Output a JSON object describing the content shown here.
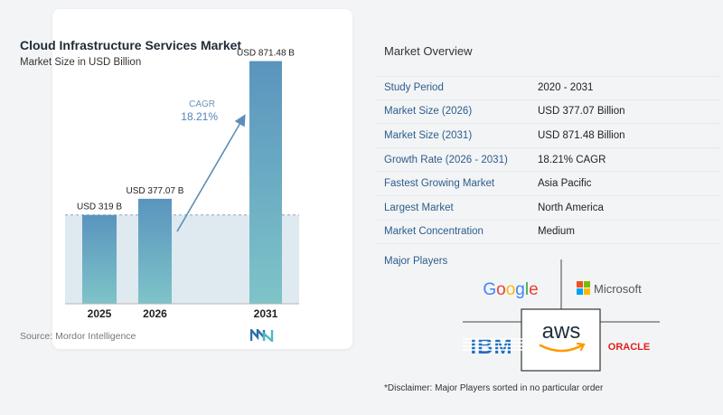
{
  "chart_data": {
    "type": "bar",
    "title": "Cloud Infrastructure Services Market",
    "subtitle": "Market Size in USD Billion",
    "categories": [
      "2025",
      "2026",
      "2031"
    ],
    "values": [
      319,
      377.07,
      871.48
    ],
    "data_labels": [
      "USD 319 B",
      "USD 377.07 B",
      "USD 871.48 B"
    ],
    "ylim": [
      0,
      1000
    ],
    "cagr_label": "CAGR",
    "cagr_value": "18.21%",
    "source": "Source:  Mordor Intelligence",
    "colors": {
      "bar_top": "#5a94be",
      "bar_bottom": "#7ec4c8",
      "band": "#dfe9f0",
      "arrow": "#5d8fb8"
    }
  },
  "overview": {
    "title": "Market Overview",
    "rows": [
      {
        "label": "Study Period",
        "value": "2020 - 2031"
      },
      {
        "label": "Market Size (2026)",
        "value": "USD 377.07 Billion"
      },
      {
        "label": "Market Size (2031)",
        "value": "USD 871.48 Billion"
      },
      {
        "label": "Growth Rate (2026 - 2031)",
        "value": "18.21% CAGR"
      },
      {
        "label": "Fastest Growing Market",
        "value": "Asia Pacific"
      },
      {
        "label": "Largest Market",
        "value": "North America"
      },
      {
        "label": "Market Concentration",
        "value": "Medium"
      }
    ]
  },
  "players": {
    "title": "Major Players",
    "logos": [
      "Google",
      "Microsoft",
      "aws",
      "IBM",
      "ORACLE"
    ],
    "disclaimer": "*Disclaimer: Major Players sorted in no particular order"
  }
}
